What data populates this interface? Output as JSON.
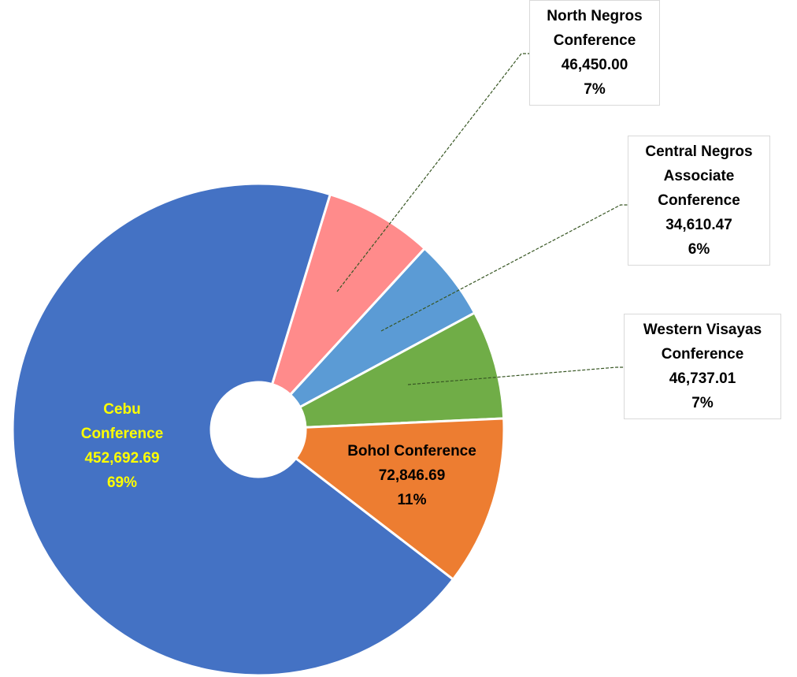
{
  "chart_data": {
    "type": "pie",
    "categories": [
      "North Negros Conference",
      "Central Negros Associate Conference",
      "Western Visayas Conference",
      "Bohol Conference",
      "Cebu Conference"
    ],
    "values": [
      46450.0,
      34610.47,
      46737.01,
      72846.69,
      452692.69
    ],
    "value_labels": [
      "46,450.00",
      "34,610.47",
      "46,737.01",
      "72,846.69",
      "452,692.69"
    ],
    "percent_labels": [
      "7%",
      "6%",
      "7%",
      "11%",
      "69%"
    ],
    "colors": [
      "#ff8b8b",
      "#5b9bd5",
      "#70ad47",
      "#ed7d31",
      "#4472c4"
    ],
    "donut": true
  }
}
